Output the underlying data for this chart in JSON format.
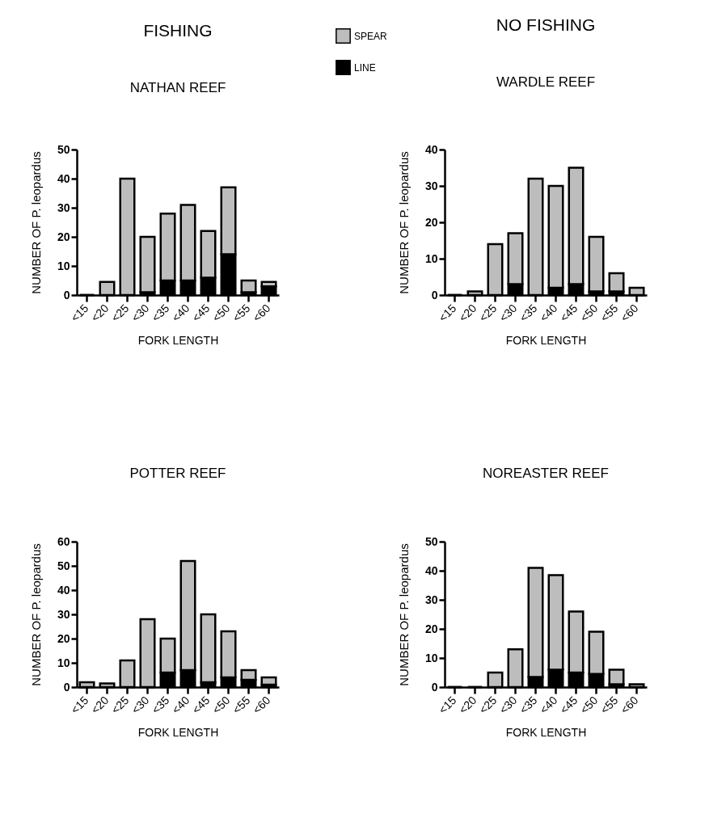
{
  "chart_data": [
    {
      "type": "bar",
      "title": "NATHAN REEF",
      "annotations": [
        "FISHING"
      ],
      "xlabel": "FORK LENGTH",
      "ylabel": "NUMBER OF P. leopardus",
      "stacked": true,
      "legend": "top right",
      "grid": false,
      "categories": [
        "<15",
        "<20",
        "<25",
        "<30",
        "<35",
        "<40",
        "<45",
        "<50",
        "<55",
        "<60"
      ],
      "ylim": [
        0,
        50
      ],
      "yticks": [
        0,
        10,
        20,
        30,
        40,
        50
      ],
      "series": [
        {
          "name": "LINE",
          "color": "#000000",
          "values": [
            0,
            0,
            0,
            1,
            5,
            5,
            6,
            14,
            1,
            3
          ]
        },
        {
          "name": "SPEAR",
          "color": "#bdbdbd",
          "values": [
            0,
            4.5,
            40,
            19,
            23,
            26,
            16,
            23,
            4,
            1.5
          ]
        }
      ]
    },
    {
      "type": "bar",
      "title": "WARDLE REEF",
      "annotations": [
        "NO FISHING"
      ],
      "xlabel": "FORK LENGTH",
      "ylabel": "NUMBER OF P. leopardus",
      "stacked": true,
      "grid": false,
      "categories": [
        "<15",
        "<20",
        "<25",
        "<30",
        "<35",
        "<40",
        "<45",
        "<50",
        "<55",
        "<60"
      ],
      "ylim": [
        0,
        40
      ],
      "yticks": [
        0,
        10,
        20,
        30,
        40
      ],
      "series": [
        {
          "color": "#000000",
          "values": [
            0,
            0,
            0,
            3,
            0,
            2,
            3,
            1,
            1,
            0
          ]
        },
        {
          "color": "#bdbdbd",
          "values": [
            0,
            1,
            14,
            14,
            32,
            28,
            32,
            15,
            5,
            2
          ]
        }
      ]
    },
    {
      "type": "bar",
      "title": "POTTER REEF",
      "xlabel": "FORK LENGTH",
      "ylabel": "NUMBER OF P. leopardus",
      "stacked": true,
      "grid": false,
      "categories": [
        "<15",
        "<20",
        "<25",
        "<30",
        "<35",
        "<40",
        "<45",
        "<50",
        "<55",
        "<60"
      ],
      "ylim": [
        0,
        60
      ],
      "yticks": [
        0,
        10,
        20,
        30,
        40,
        50,
        60
      ],
      "series": [
        {
          "color": "#000000",
          "values": [
            0,
            0,
            0,
            0,
            6,
            7,
            2,
            4,
            3,
            1
          ]
        },
        {
          "color": "#bdbdbd",
          "values": [
            2,
            1.5,
            11,
            28,
            14,
            45,
            28,
            19,
            4,
            3
          ]
        }
      ]
    },
    {
      "type": "bar",
      "title": "NOREASTER REEF",
      "xlabel": "FORK LENGTH",
      "ylabel": "NUMBER OF P. leopardus",
      "stacked": true,
      "grid": false,
      "categories": [
        "<15",
        "<20",
        "<25",
        "<30",
        "<35",
        "<40",
        "<45",
        "<50",
        "<55",
        "<60"
      ],
      "ylim": [
        0,
        50
      ],
      "yticks": [
        0,
        10,
        20,
        30,
        40,
        50
      ],
      "series": [
        {
          "color": "#000000",
          "values": [
            0,
            0,
            0,
            0,
            3.5,
            6,
            5,
            4.5,
            1,
            0
          ]
        },
        {
          "color": "#bdbdbd",
          "values": [
            0,
            0,
            5,
            13,
            37.5,
            32.5,
            21,
            14.5,
            5,
            1
          ]
        }
      ]
    }
  ]
}
